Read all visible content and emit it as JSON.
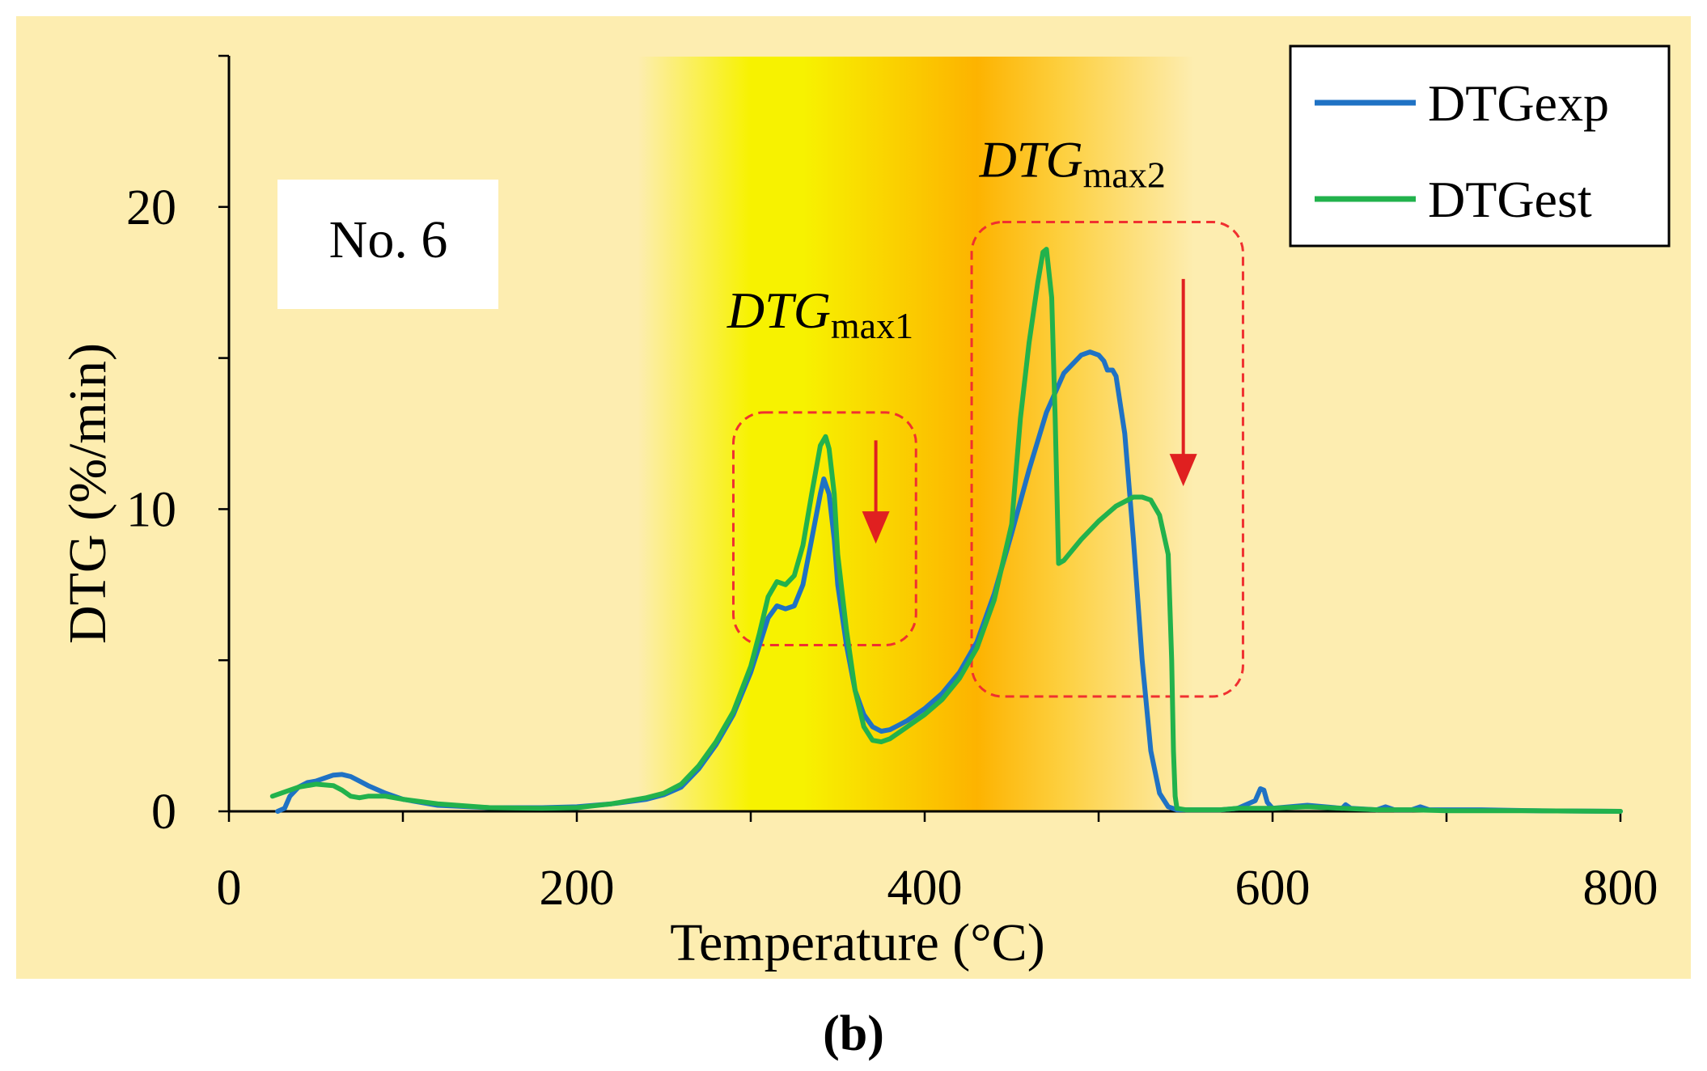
{
  "chart_data": {
    "type": "line",
    "xlabel": "Temperature  (°C)",
    "ylabel": "DTG (%/min)",
    "xlim": [
      0,
      800
    ],
    "ylim": [
      0,
      25
    ],
    "xticks": [
      0,
      200,
      400,
      600,
      800
    ],
    "yticks": [
      0,
      10,
      20
    ],
    "x_tick_labels": [
      "0",
      "200",
      "400",
      "600",
      "800"
    ],
    "y_tick_labels": [
      "0",
      "10",
      "20"
    ],
    "sample_label": "No. 6",
    "panel_label": "(b)",
    "annotations": [
      {
        "id": "dtgmax1",
        "main": "DTG",
        "sub": "max1",
        "x": 340,
        "y": 16,
        "box_x": [
          290,
          395
        ],
        "box_y": [
          5.5,
          13.2
        ]
      },
      {
        "id": "dtgmax2",
        "main": "DTG",
        "sub": "max2",
        "x": 485,
        "y": 21,
        "box_x": [
          427,
          583
        ],
        "box_y": [
          3.8,
          19.5
        ]
      }
    ],
    "shading": [
      {
        "x0": 235,
        "x1": 300,
        "color0": "#fdedb0",
        "color1": "#f7f200"
      },
      {
        "x0": 300,
        "x1": 330,
        "color0": "#f7f200",
        "color1": "#f7f200"
      },
      {
        "x0": 330,
        "x1": 430,
        "color0": "#f7f200",
        "color1": "#fdb300"
      },
      {
        "x0": 430,
        "x1": 480,
        "color0": "#fdb300",
        "color1": "#fdd040"
      },
      {
        "x0": 480,
        "x1": 555,
        "color0": "#fdd040",
        "color1": "#fdedb0"
      }
    ],
    "colors": {
      "background": "#fdedb0",
      "dashed_box": "#f03030",
      "arrow": "#e02020"
    },
    "series": [
      {
        "name": "DTGexp",
        "color": "#1f72c4",
        "x": [
          28,
          32,
          35,
          40,
          45,
          50,
          55,
          60,
          65,
          70,
          75,
          80,
          90,
          100,
          120,
          150,
          180,
          200,
          220,
          240,
          250,
          260,
          270,
          280,
          290,
          300,
          305,
          310,
          315,
          320,
          325,
          330,
          335,
          340,
          342,
          345,
          348,
          350,
          355,
          360,
          365,
          370,
          375,
          380,
          385,
          390,
          400,
          410,
          420,
          430,
          440,
          450,
          460,
          470,
          480,
          490,
          495,
          500,
          503,
          505,
          508,
          510,
          515,
          520,
          525,
          530,
          535,
          540,
          545,
          550,
          560,
          570,
          580,
          590,
          593,
          595,
          597,
          600,
          610,
          620,
          630,
          640,
          642,
          645,
          660,
          665,
          670,
          680,
          685,
          690,
          700,
          720,
          750,
          800
        ],
        "values": [
          0.0,
          0.1,
          0.5,
          0.8,
          0.95,
          1.0,
          1.1,
          1.2,
          1.22,
          1.15,
          1.0,
          0.85,
          0.6,
          0.4,
          0.2,
          0.12,
          0.12,
          0.15,
          0.25,
          0.4,
          0.55,
          0.8,
          1.4,
          2.2,
          3.2,
          4.6,
          5.5,
          6.4,
          6.8,
          6.7,
          6.8,
          7.5,
          9.0,
          10.5,
          11.0,
          10.5,
          9.0,
          7.5,
          5.5,
          4.0,
          3.2,
          2.8,
          2.65,
          2.7,
          2.85,
          3.0,
          3.4,
          3.9,
          4.6,
          5.6,
          7.2,
          9.2,
          11.3,
          13.2,
          14.5,
          15.1,
          15.2,
          15.1,
          14.9,
          14.6,
          14.6,
          14.4,
          12.5,
          9.0,
          5.0,
          2.0,
          0.6,
          0.15,
          0.05,
          0.05,
          0.05,
          0.05,
          0.1,
          0.35,
          0.75,
          0.7,
          0.3,
          0.1,
          0.15,
          0.2,
          0.15,
          0.1,
          0.22,
          0.1,
          0.05,
          0.15,
          0.05,
          0.05,
          0.15,
          0.05,
          0.05,
          0.05,
          0.02,
          0.0
        ]
      },
      {
        "name": "DTGest",
        "color": "#22b24c",
        "x": [
          25,
          30,
          40,
          50,
          60,
          65,
          70,
          75,
          80,
          90,
          100,
          120,
          150,
          180,
          200,
          220,
          240,
          250,
          260,
          270,
          280,
          290,
          300,
          305,
          310,
          315,
          320,
          325,
          330,
          335,
          340,
          343,
          345,
          348,
          350,
          355,
          360,
          365,
          370,
          375,
          380,
          385,
          390,
          400,
          410,
          420,
          430,
          440,
          450,
          455,
          460,
          465,
          468,
          470,
          473,
          475,
          477,
          480,
          490,
          500,
          510,
          520,
          525,
          530,
          535,
          540,
          542,
          543,
          544,
          545,
          550,
          560,
          570,
          580,
          600,
          620,
          640,
          660,
          680,
          700,
          750,
          800
        ],
        "values": [
          0.5,
          0.6,
          0.8,
          0.9,
          0.85,
          0.7,
          0.5,
          0.45,
          0.5,
          0.5,
          0.4,
          0.25,
          0.12,
          0.1,
          0.12,
          0.25,
          0.45,
          0.6,
          0.9,
          1.5,
          2.3,
          3.3,
          4.8,
          5.9,
          7.1,
          7.6,
          7.5,
          7.8,
          8.8,
          10.5,
          12.1,
          12.4,
          12.0,
          10.5,
          8.5,
          6.0,
          4.0,
          2.8,
          2.35,
          2.3,
          2.4,
          2.6,
          2.8,
          3.2,
          3.7,
          4.4,
          5.4,
          7.0,
          9.5,
          13.0,
          15.5,
          17.5,
          18.5,
          18.6,
          17.0,
          13.0,
          8.2,
          8.3,
          9.0,
          9.6,
          10.1,
          10.4,
          10.4,
          10.3,
          9.8,
          8.5,
          5.0,
          2.0,
          0.5,
          0.1,
          0.05,
          0.05,
          0.05,
          0.1,
          0.1,
          0.15,
          0.1,
          0.05,
          0.05,
          0.02,
          0.02,
          0.0
        ]
      }
    ],
    "legend": [
      "DTGexp",
      "DTGest"
    ],
    "legend_position": "top-right"
  }
}
